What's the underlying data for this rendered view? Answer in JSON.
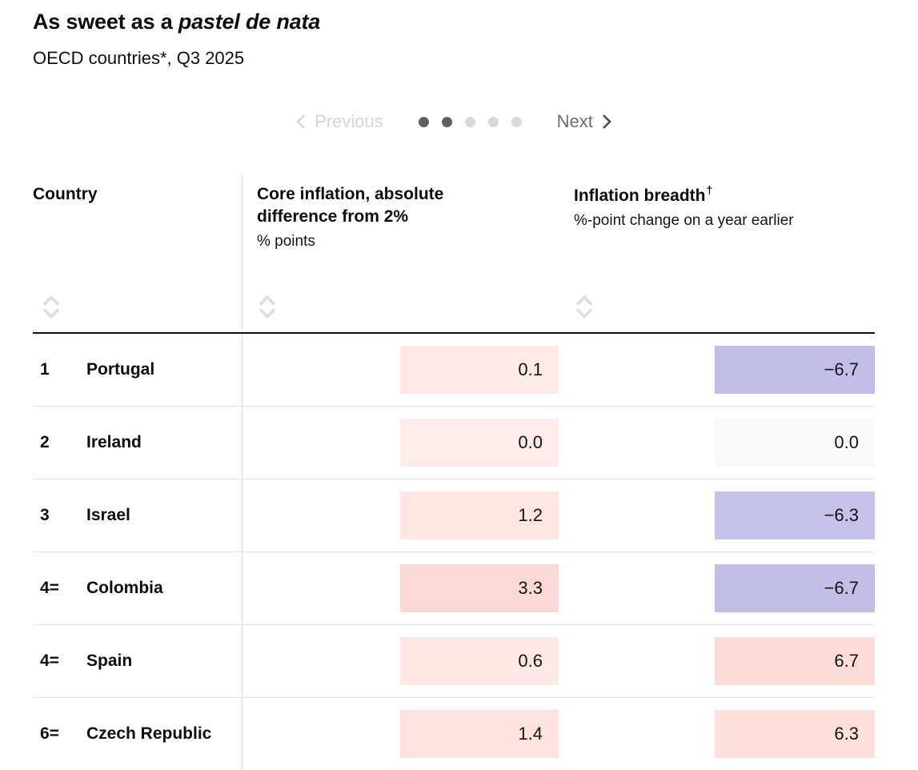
{
  "header": {
    "title_plain": "As sweet as a ",
    "title_italic": "pastel de nata",
    "subtitle": "OECD countries*, Q3 2025"
  },
  "pagination": {
    "previous_label": "Previous",
    "next_label": "Next",
    "dots_total": 5,
    "dots_active": 2
  },
  "table": {
    "columns": [
      {
        "label": "Country",
        "unit": ""
      },
      {
        "label": "Core inflation, absolute difference from 2%",
        "unit": "% points"
      },
      {
        "label": "Inflation breadth",
        "superscript": "†",
        "unit": "%-point change on a year earlier"
      }
    ],
    "rows": [
      {
        "rank": "1",
        "country": "Portugal",
        "core": "0.1",
        "core_bg": "#fdeae8",
        "breadth": "−6.7",
        "breadth_bg": "#c2bee6"
      },
      {
        "rank": "2",
        "country": "Ireland",
        "core": "0.0",
        "core_bg": "#fcebe9",
        "breadth": "0.0",
        "breadth_bg": "#f9f9f9"
      },
      {
        "rank": "3",
        "country": "Israel",
        "core": "1.2",
        "core_bg": "#fce5e2",
        "breadth": "−6.3",
        "breadth_bg": "#c5c1e8"
      },
      {
        "rank": "4=",
        "country": "Colombia",
        "core": "3.3",
        "core_bg": "#fbd9d6",
        "breadth": "−6.7",
        "breadth_bg": "#c2bee6"
      },
      {
        "rank": "4=",
        "country": "Spain",
        "core": "0.6",
        "core_bg": "#fde8e5",
        "breadth": "6.7",
        "breadth_bg": "#fcdcd9"
      },
      {
        "rank": "6=",
        "country": "Czech Republic",
        "core": "1.4",
        "core_bg": "#fce3e0",
        "breadth": "6.3",
        "breadth_bg": "#fcdedb"
      }
    ]
  },
  "colors": {
    "negative_purple": "#c2bee6",
    "positive_pink": "#fbd9d6",
    "zero_grey": "#f9f9f9",
    "dot_active": "#606060",
    "dot_inactive": "#d9d9d9",
    "disabled_text": "#d5d5d5",
    "row_divider": "#e3e3e3",
    "header_border": "#0c0c0c"
  },
  "chart_data": {
    "type": "table",
    "title": "As sweet as a pastel de nata",
    "subtitle": "OECD countries*, Q3 2025",
    "columns": [
      "Rank",
      "Country",
      "Core inflation, absolute difference from 2% (% points)",
      "Inflation breadth, %-point change on a year earlier"
    ],
    "rows": [
      [
        "1",
        "Portugal",
        0.1,
        -6.7
      ],
      [
        "2",
        "Ireland",
        0.0,
        0.0
      ],
      [
        "3",
        "Israel",
        1.2,
        -6.3
      ],
      [
        "4=",
        "Colombia",
        3.3,
        -6.7
      ],
      [
        "4=",
        "Spain",
        0.6,
        6.7
      ],
      [
        "6=",
        "Czech Republic",
        1.4,
        6.3
      ]
    ],
    "legend_position": "none",
    "grid": "horizontal-row-dividers"
  }
}
